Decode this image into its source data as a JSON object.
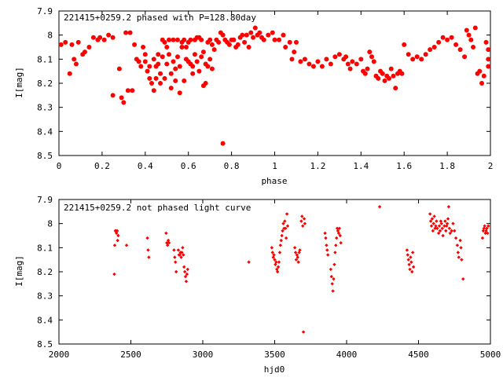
{
  "chart_data": [
    {
      "type": "scatter",
      "title": "221415+0259.2 phased with P=128.80day",
      "xlabel": "phase",
      "ylabel": "I[mag]",
      "xlim": [
        0,
        2
      ],
      "ylim": [
        7.9,
        8.5
      ],
      "y_inverted": true,
      "x_ticks": [
        "0",
        "0.2",
        "0.4",
        "0.6",
        "0.8",
        "1",
        "1.2",
        "1.4",
        "1.6",
        "1.8",
        "2"
      ],
      "y_ticks": [
        "7.9",
        "8",
        "8.1",
        "8.2",
        "8.3",
        "8.4",
        "8.5"
      ],
      "marker_color": "#ff0000",
      "marker": "filled-circle-large",
      "points": [
        [
          0.01,
          8.04
        ],
        [
          0.03,
          8.03
        ],
        [
          0.05,
          8.16
        ],
        [
          0.06,
          8.04
        ],
        [
          0.07,
          8.1
        ],
        [
          0.08,
          8.12
        ],
        [
          0.09,
          8.03
        ],
        [
          0.11,
          8.08
        ],
        [
          0.12,
          8.07
        ],
        [
          0.14,
          8.05
        ],
        [
          0.16,
          8.01
        ],
        [
          0.18,
          8.02
        ],
        [
          0.19,
          8.01
        ],
        [
          0.21,
          8.02
        ],
        [
          0.23,
          8.0
        ],
        [
          0.25,
          8.01
        ],
        [
          0.28,
          8.14
        ],
        [
          0.31,
          7.99
        ],
        [
          0.33,
          7.99
        ],
        [
          0.35,
          8.04
        ],
        [
          0.36,
          8.1
        ],
        [
          0.37,
          8.11
        ],
        [
          0.38,
          8.13
        ],
        [
          0.39,
          8.05
        ],
        [
          0.4,
          8.11
        ],
        [
          0.4,
          8.08
        ],
        [
          0.41,
          8.15
        ],
        [
          0.42,
          8.13
        ],
        [
          0.42,
          8.18
        ],
        [
          0.43,
          8.2
        ],
        [
          0.44,
          8.23
        ],
        [
          0.44,
          8.1
        ],
        [
          0.45,
          8.18
        ],
        [
          0.45,
          8.13
        ],
        [
          0.46,
          8.08
        ],
        [
          0.46,
          8.12
        ],
        [
          0.47,
          8.16
        ],
        [
          0.47,
          8.2
        ],
        [
          0.48,
          8.09
        ],
        [
          0.48,
          8.02
        ],
        [
          0.49,
          8.03
        ],
        [
          0.49,
          8.18
        ],
        [
          0.5,
          8.05
        ],
        [
          0.5,
          8.12
        ],
        [
          0.51,
          8.02
        ],
        [
          0.51,
          8.08
        ],
        [
          0.52,
          8.16
        ],
        [
          0.52,
          8.22
        ],
        [
          0.53,
          8.02
        ],
        [
          0.53,
          8.11
        ],
        [
          0.54,
          8.19
        ],
        [
          0.54,
          8.14
        ],
        [
          0.55,
          8.02
        ],
        [
          0.55,
          8.09
        ],
        [
          0.56,
          8.13
        ],
        [
          0.56,
          8.24
        ],
        [
          0.57,
          8.03
        ],
        [
          0.57,
          8.05
        ],
        [
          0.58,
          8.02
        ],
        [
          0.58,
          8.19
        ],
        [
          0.59,
          8.05
        ],
        [
          0.59,
          8.1
        ],
        [
          0.6,
          8.03
        ],
        [
          0.6,
          8.11
        ],
        [
          0.61,
          8.02
        ],
        [
          0.61,
          8.12
        ],
        [
          0.62,
          8.13
        ],
        [
          0.62,
          8.16
        ],
        [
          0.63,
          8.02
        ],
        [
          0.63,
          8.08
        ],
        [
          0.64,
          8.01
        ],
        [
          0.64,
          8.11
        ],
        [
          0.65,
          8.01
        ],
        [
          0.65,
          8.15
        ],
        [
          0.66,
          8.02
        ],
        [
          0.66,
          8.09
        ],
        [
          0.67,
          8.07
        ],
        [
          0.67,
          8.21
        ],
        [
          0.68,
          8.12
        ],
        [
          0.68,
          8.2
        ],
        [
          0.69,
          8.13
        ],
        [
          0.69,
          8.03
        ],
        [
          0.7,
          8.02
        ],
        [
          0.7,
          8.1
        ],
        [
          0.71,
          8.04
        ],
        [
          0.71,
          8.14
        ],
        [
          0.72,
          8.06
        ],
        [
          0.73,
          8.02
        ],
        [
          0.74,
          8.03
        ],
        [
          0.75,
          7.99
        ],
        [
          0.76,
          8.0
        ],
        [
          0.77,
          8.02
        ],
        [
          0.78,
          8.03
        ],
        [
          0.79,
          8.04
        ],
        [
          0.8,
          8.02
        ],
        [
          0.81,
          8.02
        ],
        [
          0.82,
          8.05
        ],
        [
          0.83,
          8.04
        ],
        [
          0.84,
          8.01
        ],
        [
          0.85,
          8.0
        ],
        [
          0.86,
          8.03
        ],
        [
          0.87,
          8.0
        ],
        [
          0.88,
          8.05
        ],
        [
          0.89,
          7.99
        ],
        [
          0.9,
          8.01
        ],
        [
          0.91,
          7.97
        ],
        [
          0.92,
          8.0
        ],
        [
          0.93,
          7.99
        ],
        [
          0.94,
          8.01
        ],
        [
          0.95,
          8.02
        ],
        [
          0.97,
          8.0
        ],
        [
          0.99,
          7.99
        ],
        [
          1.0,
          8.02
        ],
        [
          1.02,
          8.02
        ],
        [
          1.04,
          8.0
        ],
        [
          1.05,
          8.05
        ],
        [
          1.07,
          8.03
        ],
        [
          1.08,
          8.1
        ],
        [
          1.09,
          8.07
        ],
        [
          1.1,
          8.03
        ],
        [
          1.12,
          8.11
        ],
        [
          1.14,
          8.1
        ],
        [
          1.16,
          8.12
        ],
        [
          1.18,
          8.13
        ],
        [
          1.2,
          8.11
        ],
        [
          1.22,
          8.13
        ],
        [
          1.24,
          8.1
        ],
        [
          1.26,
          8.12
        ],
        [
          1.28,
          8.09
        ],
        [
          1.3,
          8.08
        ],
        [
          1.32,
          8.1
        ],
        [
          1.33,
          8.09
        ],
        [
          1.34,
          8.12
        ],
        [
          1.35,
          8.14
        ],
        [
          1.36,
          8.11
        ],
        [
          1.38,
          8.12
        ],
        [
          1.4,
          8.1
        ],
        [
          1.41,
          8.15
        ],
        [
          1.42,
          8.16
        ],
        [
          1.43,
          8.14
        ],
        [
          1.44,
          8.07
        ],
        [
          1.45,
          8.09
        ],
        [
          1.46,
          8.11
        ],
        [
          1.47,
          8.17
        ],
        [
          1.48,
          8.18
        ],
        [
          1.49,
          8.15
        ],
        [
          1.5,
          8.16
        ],
        [
          1.51,
          8.19
        ],
        [
          1.52,
          8.17
        ],
        [
          1.53,
          8.18
        ],
        [
          1.54,
          8.14
        ],
        [
          1.55,
          8.17
        ],
        [
          1.56,
          8.22
        ],
        [
          1.57,
          8.16
        ],
        [
          1.58,
          8.15
        ],
        [
          1.59,
          8.16
        ],
        [
          1.6,
          8.04
        ],
        [
          1.62,
          8.08
        ],
        [
          1.64,
          8.1
        ],
        [
          1.66,
          8.09
        ],
        [
          1.68,
          8.1
        ],
        [
          1.7,
          8.08
        ],
        [
          1.72,
          8.06
        ],
        [
          1.74,
          8.05
        ],
        [
          1.76,
          8.03
        ],
        [
          1.78,
          8.01
        ],
        [
          1.8,
          8.02
        ],
        [
          1.82,
          8.01
        ],
        [
          1.84,
          8.04
        ],
        [
          1.86,
          8.06
        ],
        [
          1.88,
          8.09
        ],
        [
          1.89,
          7.98
        ],
        [
          1.9,
          8.0
        ],
        [
          1.91,
          8.02
        ],
        [
          1.92,
          8.05
        ],
        [
          1.93,
          7.97
        ],
        [
          1.94,
          8.16
        ],
        [
          1.95,
          8.15
        ],
        [
          1.96,
          8.2
        ],
        [
          1.97,
          8.17
        ],
        [
          1.98,
          8.03
        ],
        [
          1.99,
          8.13
        ],
        [
          1.99,
          8.1
        ],
        [
          1.99,
          8.06
        ],
        [
          0.25,
          8.25
        ],
        [
          0.29,
          8.26
        ],
        [
          0.3,
          8.28
        ],
        [
          0.32,
          8.23
        ],
        [
          0.34,
          8.23
        ],
        [
          0.76,
          8.45
        ]
      ]
    },
    {
      "type": "scatter",
      "title": "221415+0259.2 not phased light curve",
      "xlabel": "hjd0",
      "ylabel": "I[mag]",
      "xlim": [
        2000,
        5000
      ],
      "ylim": [
        7.9,
        8.5
      ],
      "y_inverted": true,
      "x_ticks": [
        "2000",
        "2500",
        "3000",
        "3500",
        "4000",
        "4500",
        "5000"
      ],
      "y_ticks": [
        "7.9",
        "8",
        "8.1",
        "8.2",
        "8.3",
        "8.4",
        "8.5"
      ],
      "marker_color": "#ff0000",
      "marker": "filled-diamond-small",
      "points": [
        [
          2385,
          8.21
        ],
        [
          2388,
          8.09
        ],
        [
          2392,
          8.03
        ],
        [
          2396,
          8.03
        ],
        [
          2400,
          8.04
        ],
        [
          2405,
          8.03
        ],
        [
          2408,
          8.07
        ],
        [
          2412,
          8.05
        ],
        [
          2470,
          8.09
        ],
        [
          2615,
          8.06
        ],
        [
          2620,
          8.11
        ],
        [
          2625,
          8.14
        ],
        [
          2745,
          8.04
        ],
        [
          2750,
          8.08
        ],
        [
          2755,
          8.09
        ],
        [
          2760,
          8.07
        ],
        [
          2765,
          8.08
        ],
        [
          2800,
          8.11
        ],
        [
          2805,
          8.14
        ],
        [
          2810,
          8.16
        ],
        [
          2815,
          8.2
        ],
        [
          2830,
          8.11
        ],
        [
          2835,
          8.13
        ],
        [
          2840,
          8.13
        ],
        [
          2845,
          8.12
        ],
        [
          2850,
          8.14
        ],
        [
          2855,
          8.12
        ],
        [
          2860,
          8.1
        ],
        [
          2865,
          8.13
        ],
        [
          2870,
          8.18
        ],
        [
          2875,
          8.2
        ],
        [
          2880,
          8.22
        ],
        [
          2885,
          8.24
        ],
        [
          2890,
          8.21
        ],
        [
          2895,
          8.19
        ],
        [
          3320,
          8.16
        ],
        [
          3480,
          8.1
        ],
        [
          3485,
          8.12
        ],
        [
          3490,
          8.14
        ],
        [
          3495,
          8.13
        ],
        [
          3500,
          8.15
        ],
        [
          3505,
          8.17
        ],
        [
          3510,
          8.16
        ],
        [
          3515,
          8.19
        ],
        [
          3520,
          8.2
        ],
        [
          3525,
          8.18
        ],
        [
          3530,
          8.16
        ],
        [
          3535,
          8.12
        ],
        [
          3540,
          8.09
        ],
        [
          3545,
          8.07
        ],
        [
          3550,
          8.05
        ],
        [
          3555,
          8.03
        ],
        [
          3560,
          8.0
        ],
        [
          3565,
          8.02
        ],
        [
          3570,
          7.99
        ],
        [
          3575,
          8.02
        ],
        [
          3580,
          8.06
        ],
        [
          3585,
          7.96
        ],
        [
          3590,
          8.01
        ],
        [
          3640,
          8.1
        ],
        [
          3645,
          8.12
        ],
        [
          3650,
          8.15
        ],
        [
          3655,
          8.13
        ],
        [
          3660,
          8.14
        ],
        [
          3665,
          8.16
        ],
        [
          3670,
          8.12
        ],
        [
          3675,
          8.11
        ],
        [
          3685,
          7.99
        ],
        [
          3690,
          7.97
        ],
        [
          3695,
          8.01
        ],
        [
          3700,
          8.45
        ],
        [
          3705,
          7.98
        ],
        [
          3710,
          8.0
        ],
        [
          3850,
          8.04
        ],
        [
          3855,
          8.06
        ],
        [
          3860,
          8.09
        ],
        [
          3865,
          8.11
        ],
        [
          3870,
          8.13
        ],
        [
          3890,
          8.19
        ],
        [
          3895,
          8.22
        ],
        [
          3900,
          8.25
        ],
        [
          3905,
          8.28
        ],
        [
          3910,
          8.23
        ],
        [
          3915,
          8.17
        ],
        [
          3920,
          8.12
        ],
        [
          3925,
          8.09
        ],
        [
          3930,
          8.06
        ],
        [
          3935,
          8.02
        ],
        [
          3940,
          8.03
        ],
        [
          3945,
          8.04
        ],
        [
          3950,
          8.02
        ],
        [
          3955,
          8.05
        ],
        [
          3960,
          8.08
        ],
        [
          4230,
          7.93
        ],
        [
          4420,
          8.11
        ],
        [
          4425,
          8.13
        ],
        [
          4430,
          8.15
        ],
        [
          4435,
          8.17
        ],
        [
          4440,
          8.19
        ],
        [
          4445,
          8.14
        ],
        [
          4450,
          8.16
        ],
        [
          4455,
          8.2
        ],
        [
          4460,
          8.12
        ],
        [
          4465,
          8.18
        ],
        [
          4580,
          7.96
        ],
        [
          4585,
          7.99
        ],
        [
          4590,
          8.01
        ],
        [
          4595,
          7.98
        ],
        [
          4600,
          8.03
        ],
        [
          4605,
          8.0
        ],
        [
          4610,
          7.97
        ],
        [
          4615,
          8.02
        ],
        [
          4620,
          8.01
        ],
        [
          4625,
          7.99
        ],
        [
          4630,
          8.02
        ],
        [
          4640,
          8.04
        ],
        [
          4645,
          8.01
        ],
        [
          4650,
          8.03
        ],
        [
          4655,
          7.99
        ],
        [
          4660,
          8.0
        ],
        [
          4665,
          8.02
        ],
        [
          4670,
          8.05
        ],
        [
          4680,
          8.01
        ],
        [
          4685,
          7.99
        ],
        [
          4690,
          8.03
        ],
        [
          4695,
          8.01
        ],
        [
          4700,
          8.0
        ],
        [
          4705,
          7.98
        ],
        [
          4710,
          7.93
        ],
        [
          4715,
          8.02
        ],
        [
          4720,
          8.04
        ],
        [
          4730,
          8.03
        ],
        [
          4740,
          8.0
        ],
        [
          4750,
          8.03
        ],
        [
          4760,
          8.06
        ],
        [
          4770,
          8.09
        ],
        [
          4775,
          8.12
        ],
        [
          4780,
          8.14
        ],
        [
          4790,
          8.07
        ],
        [
          4795,
          8.1
        ],
        [
          4800,
          8.15
        ],
        [
          4810,
          8.23
        ],
        [
          4945,
          8.06
        ],
        [
          4950,
          8.03
        ],
        [
          4955,
          8.02
        ],
        [
          4960,
          8.01
        ],
        [
          4965,
          8.04
        ],
        [
          4970,
          8.03
        ],
        [
          4975,
          8.02
        ],
        [
          4980,
          8.04
        ],
        [
          4985,
          8.01
        ]
      ]
    }
  ]
}
